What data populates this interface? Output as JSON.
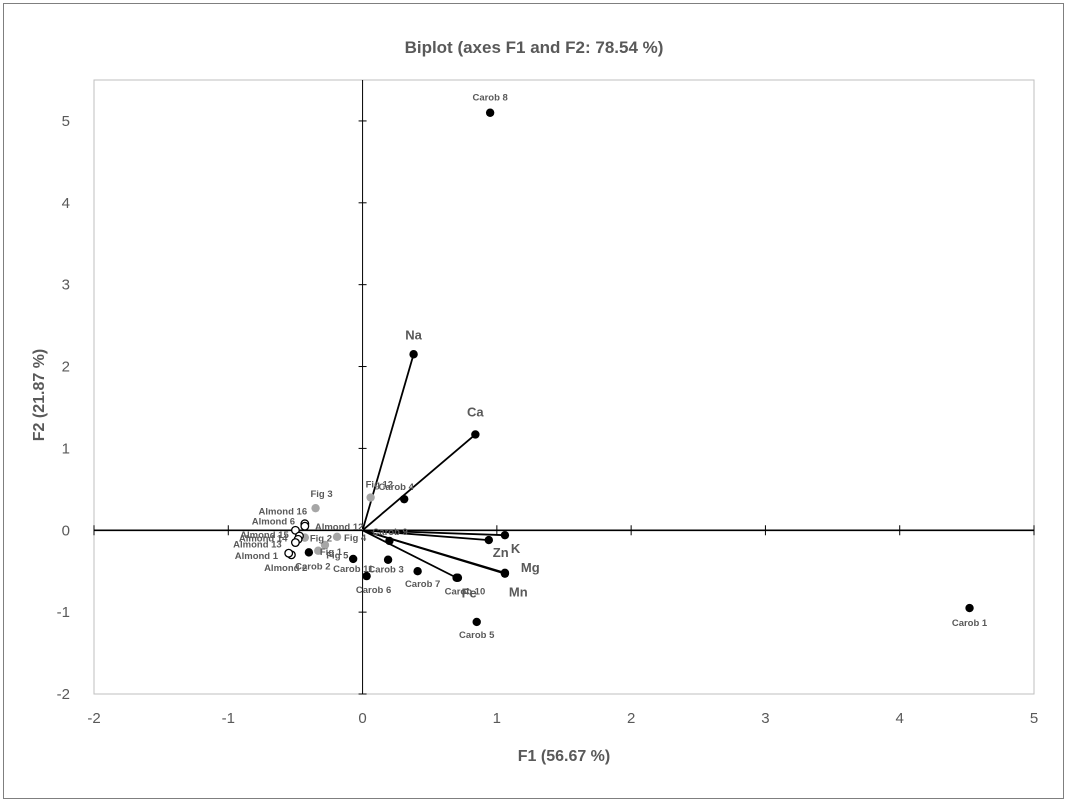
{
  "chart_data": {
    "type": "scatter",
    "title": "Biplot (axes F1 and F2: 78.54 %)",
    "xlabel": "F1 (56.67 %)",
    "ylabel": "F2 (21.87 %)",
    "xlim": [
      -2,
      5
    ],
    "ylim": [
      -2,
      5.5
    ],
    "x_ticks": [
      "-2",
      "-1",
      "0",
      "1",
      "2",
      "3",
      "4",
      "5"
    ],
    "y_ticks": [
      "-2",
      "-1",
      "0",
      "1",
      "2",
      "3",
      "4",
      "5"
    ],
    "x_tick_values": [
      -2,
      -1,
      0,
      1,
      2,
      3,
      4,
      5
    ],
    "y_tick_values": [
      -2,
      -1,
      0,
      1,
      2,
      3,
      4,
      5
    ],
    "colors": {
      "carob": "#000000",
      "fig": "#a6a6a6",
      "almond_fill": "#ffffff",
      "almond_stroke": "#000000",
      "vector": "#000000",
      "axis": "#000000",
      "text": "#595959"
    },
    "observations": [
      {
        "group": "carob",
        "label": "Carob 8",
        "x": 0.95,
        "y": 5.1
      },
      {
        "group": "carob",
        "label": "Carob 1",
        "x": 4.52,
        "y": -0.95
      },
      {
        "group": "carob",
        "label": "Carob 5",
        "x": 0.85,
        "y": -1.12
      },
      {
        "group": "carob",
        "label": "Carob 4",
        "x": 0.31,
        "y": 0.38
      },
      {
        "group": "carob",
        "label": "Carob 9",
        "x": 0.2,
        "y": -0.13
      },
      {
        "group": "carob",
        "label": "Carob 3",
        "x": 0.19,
        "y": -0.36
      },
      {
        "group": "carob",
        "label": "Carob 7",
        "x": 0.41,
        "y": -0.5
      },
      {
        "group": "carob",
        "label": "Carob 6",
        "x": 0.03,
        "y": -0.56
      },
      {
        "group": "carob",
        "label": "Carob 10",
        "x": 0.71,
        "y": -0.58
      },
      {
        "group": "carob",
        "label": "Carob 11",
        "x": -0.07,
        "y": -0.35
      },
      {
        "group": "carob",
        "label": "Carob 2",
        "x": -0.4,
        "y": -0.27
      },
      {
        "group": "fig",
        "label": "Fig 12",
        "x": 0.06,
        "y": 0.4
      },
      {
        "group": "fig",
        "label": "Fig 3",
        "x": -0.35,
        "y": 0.27
      },
      {
        "group": "fig",
        "label": "Fig 4",
        "x": -0.19,
        "y": -0.08
      },
      {
        "group": "fig",
        "label": "Fig 1",
        "x": -0.28,
        "y": -0.18
      },
      {
        "group": "fig",
        "label": "Fig 2",
        "x": -0.43,
        "y": -0.09
      },
      {
        "group": "fig",
        "label": "Fig 5",
        "x": -0.33,
        "y": -0.25
      },
      {
        "group": "almond",
        "label": "Almond 16",
        "x": -0.43,
        "y": 0.08
      },
      {
        "group": "almond",
        "label": "Almond 12",
        "x": -0.43,
        "y": 0.05
      },
      {
        "group": "almond",
        "label": "Almond 6",
        "x": -0.5,
        "y": 0.0
      },
      {
        "group": "almond",
        "label": "Almond 15",
        "x": -0.47,
        "y": -0.07
      },
      {
        "group": "almond",
        "label": "Almond 14",
        "x": -0.48,
        "y": -0.11
      },
      {
        "group": "almond",
        "label": "Almond 13",
        "x": -0.5,
        "y": -0.15
      },
      {
        "group": "almond",
        "label": "Almond 1",
        "x": -0.53,
        "y": -0.3
      },
      {
        "group": "almond",
        "label": "Almond 2",
        "x": -0.55,
        "y": -0.28
      }
    ],
    "variables": [
      {
        "label": "Na",
        "x": 0.38,
        "y": 2.15
      },
      {
        "label": "Ca",
        "x": 0.84,
        "y": 1.17
      },
      {
        "label": "K",
        "x": 1.06,
        "y": -0.06
      },
      {
        "label": "Zn",
        "x": 0.94,
        "y": -0.12
      },
      {
        "label": "Mg",
        "x": 1.06,
        "y": -0.52
      },
      {
        "label": "Mn",
        "x": 1.06,
        "y": -0.53
      },
      {
        "label": "Fe",
        "x": 0.7,
        "y": -0.58
      }
    ]
  }
}
